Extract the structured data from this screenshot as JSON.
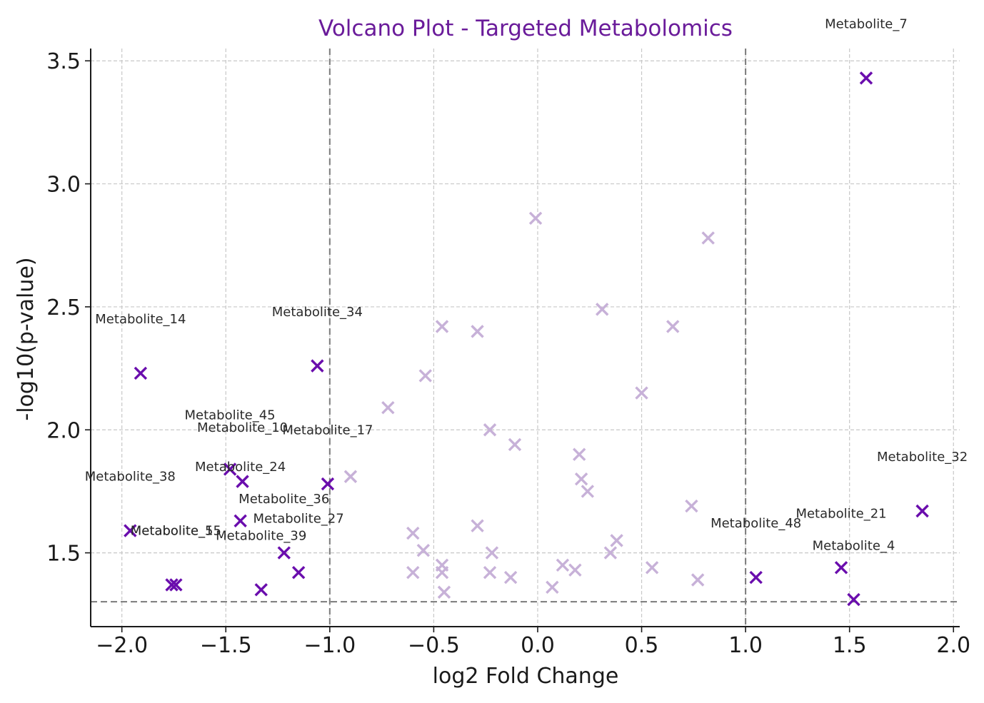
{
  "colors": {
    "significant": "#6a0dad",
    "nonsignificant": "#c7b1d8",
    "title": "#6a1b9a"
  },
  "chart_data": {
    "type": "scatter",
    "title": "Volcano Plot - Targeted Metabolomics",
    "xlabel": "log2 Fold Change",
    "ylabel": "-log10(p-value)",
    "xlim": [
      -2.15,
      2.03
    ],
    "ylim": [
      1.2,
      3.55
    ],
    "xticks": [
      -2.0,
      -1.5,
      -1.0,
      -0.5,
      0.0,
      0.5,
      1.0,
      1.5,
      2.0
    ],
    "xtick_labels": [
      "−2.0",
      "−1.5",
      "−1.0",
      "−0.5",
      "0.0",
      "0.5",
      "1.0",
      "1.5",
      "2.0"
    ],
    "yticks": [
      1.5,
      2.0,
      2.5,
      3.0,
      3.5
    ],
    "ytick_labels": [
      "1.5",
      "2.0",
      "2.5",
      "3.0",
      "3.5"
    ],
    "grid": true,
    "marker": "x",
    "thresholds": {
      "fold_change": [
        -1.0,
        1.0
      ],
      "neg_log10_p": 1.301
    },
    "significant": [
      {
        "name": "Metabolite_7",
        "x": 1.58,
        "y": 3.43,
        "label_dx": 0.0,
        "label_dy": 0.22
      },
      {
        "name": "Metabolite_14",
        "x": -1.91,
        "y": 2.23,
        "label_dx": 0.0,
        "label_dy": 0.22
      },
      {
        "name": "Metabolite_34",
        "x": -1.06,
        "y": 2.26,
        "label_dx": 0.0,
        "label_dy": 0.22
      },
      {
        "name": "Metabolite_45",
        "x": -1.48,
        "y": 1.84,
        "label_dx": 0.0,
        "label_dy": 0.22
      },
      {
        "name": "Metabolite_10",
        "x": -1.42,
        "y": 1.79,
        "label_dx": 0.0,
        "label_dy": 0.22
      },
      {
        "name": "Metabolite_17",
        "x": -1.01,
        "y": 1.78,
        "label_dx": 0.0,
        "label_dy": 0.22
      },
      {
        "name": "Metabolite_38",
        "x": -1.96,
        "y": 1.59,
        "label_dx": 0.0,
        "label_dy": 0.22
      },
      {
        "name": "Metabolite_24",
        "x": -1.43,
        "y": 1.63,
        "label_dx": 0.0,
        "label_dy": 0.22
      },
      {
        "name": "Metabolite_36",
        "x": -1.22,
        "y": 1.5,
        "label_dx": 0.0,
        "label_dy": 0.22
      },
      {
        "name": "Metabolite_27",
        "x": -1.15,
        "y": 1.42,
        "label_dx": 0.0,
        "label_dy": 0.22
      },
      {
        "name": "Metabolite_5",
        "x": -1.76,
        "y": 1.37,
        "label_dx": 0.0,
        "label_dy": 0.22
      },
      {
        "name": "Metabolite_15",
        "x": -1.74,
        "y": 1.37,
        "label_dx": 0.0,
        "label_dy": 0.22
      },
      {
        "name": "Metabolite_39",
        "x": -1.33,
        "y": 1.35,
        "label_dx": 0.0,
        "label_dy": 0.22
      },
      {
        "name": "Metabolite_32",
        "x": 1.85,
        "y": 1.67,
        "label_dx": 0.0,
        "label_dy": 0.22
      },
      {
        "name": "Metabolite_21",
        "x": 1.46,
        "y": 1.44,
        "label_dx": 0.0,
        "label_dy": 0.22
      },
      {
        "name": "Metabolite_48",
        "x": 1.05,
        "y": 1.4,
        "label_dx": 0.0,
        "label_dy": 0.22
      },
      {
        "name": "Metabolite_4",
        "x": 1.52,
        "y": 1.31,
        "label_dx": 0.0,
        "label_dy": 0.22
      }
    ],
    "nonsignificant": [
      {
        "x": -0.01,
        "y": 2.86
      },
      {
        "x": 0.82,
        "y": 2.78
      },
      {
        "x": 0.31,
        "y": 2.49
      },
      {
        "x": -0.46,
        "y": 2.42
      },
      {
        "x": -0.29,
        "y": 2.4
      },
      {
        "x": 0.65,
        "y": 2.42
      },
      {
        "x": -0.54,
        "y": 2.22
      },
      {
        "x": 0.5,
        "y": 2.15
      },
      {
        "x": -0.72,
        "y": 2.09
      },
      {
        "x": -0.23,
        "y": 2.0
      },
      {
        "x": -0.11,
        "y": 1.94
      },
      {
        "x": 0.2,
        "y": 1.9
      },
      {
        "x": -0.9,
        "y": 1.81
      },
      {
        "x": 0.21,
        "y": 1.8
      },
      {
        "x": 0.24,
        "y": 1.75
      },
      {
        "x": 0.74,
        "y": 1.69
      },
      {
        "x": -0.29,
        "y": 1.61
      },
      {
        "x": -0.6,
        "y": 1.58
      },
      {
        "x": 0.38,
        "y": 1.55
      },
      {
        "x": -0.55,
        "y": 1.51
      },
      {
        "x": -0.22,
        "y": 1.5
      },
      {
        "x": 0.35,
        "y": 1.5
      },
      {
        "x": -0.46,
        "y": 1.45
      },
      {
        "x": 0.12,
        "y": 1.45
      },
      {
        "x": 0.55,
        "y": 1.44
      },
      {
        "x": -0.6,
        "y": 1.42
      },
      {
        "x": -0.46,
        "y": 1.42
      },
      {
        "x": -0.23,
        "y": 1.42
      },
      {
        "x": 0.18,
        "y": 1.43
      },
      {
        "x": -0.13,
        "y": 1.4
      },
      {
        "x": 0.77,
        "y": 1.39
      },
      {
        "x": 0.07,
        "y": 1.36
      },
      {
        "x": -0.45,
        "y": 1.34
      }
    ]
  }
}
